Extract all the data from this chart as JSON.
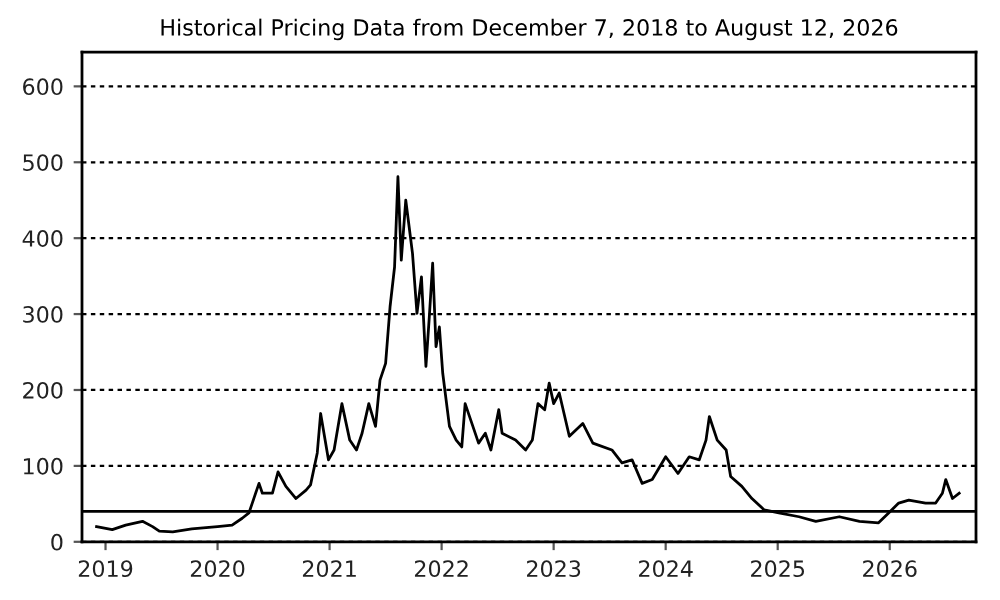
{
  "chart_data": {
    "type": "line",
    "title": "Historical Pricing Data from December 7, 2018 to August 12, 2026",
    "x": [
      2018.92,
      2019.06,
      2019.18,
      2019.33,
      2019.42,
      2019.48,
      2019.6,
      2019.77,
      2020.0,
      2020.13,
      2020.22,
      2020.28,
      2020.31,
      2020.37,
      2020.4,
      2020.49,
      2020.54,
      2020.61,
      2020.7,
      2020.79,
      2020.83,
      2020.89,
      2020.92,
      2020.99,
      2021.04,
      2021.11,
      2021.18,
      2021.24,
      2021.29,
      2021.35,
      2021.41,
      2021.45,
      2021.5,
      2021.54,
      2021.58,
      2021.61,
      2021.64,
      2021.68,
      2021.71,
      2021.74,
      2021.78,
      2021.82,
      2021.86,
      2021.89,
      2021.92,
      2021.95,
      2021.98,
      2022.01,
      2022.07,
      2022.13,
      2022.18,
      2022.21,
      2022.27,
      2022.33,
      2022.39,
      2022.44,
      2022.51,
      2022.54,
      2022.66,
      2022.75,
      2022.81,
      2022.86,
      2022.92,
      2022.96,
      2023.0,
      2023.05,
      2023.14,
      2023.26,
      2023.35,
      2023.52,
      2023.61,
      2023.7,
      2023.79,
      2023.88,
      2024.0,
      2024.11,
      2024.21,
      2024.3,
      2024.36,
      2024.39,
      2024.46,
      2024.54,
      2024.58,
      2024.68,
      2024.77,
      2024.88,
      2025.01,
      2025.19,
      2025.34,
      2025.55,
      2025.73,
      2025.9,
      2025.99,
      2026.08,
      2026.17,
      2026.32,
      2026.41,
      2026.47,
      2026.5,
      2026.56,
      2026.62
    ],
    "series": [
      {
        "color": "#000000",
        "values": [
          20,
          16,
          22,
          27,
          20,
          14,
          13,
          17,
          20,
          22,
          31,
          38,
          51,
          77,
          64,
          64,
          92,
          73,
          57,
          68,
          75,
          117,
          169,
          108,
          121,
          182,
          134,
          121,
          143,
          182,
          152,
          213,
          235,
          310,
          362,
          481,
          371,
          450,
          415,
          380,
          301,
          349,
          231,
          296,
          367,
          257,
          283,
          222,
          152,
          134,
          125,
          182,
          156,
          130,
          143,
          121,
          174,
          143,
          134,
          121,
          134,
          182,
          174,
          209,
          182,
          196,
          139,
          156,
          130,
          121,
          104,
          108,
          77,
          82,
          112,
          90,
          112,
          108,
          134,
          165,
          134,
          121,
          86,
          73,
          57,
          42,
          38,
          33,
          27,
          33,
          27,
          25,
          38,
          51,
          55,
          51,
          51,
          64,
          82,
          57,
          64
        ]
      }
    ],
    "xlim": [
      2018.79,
      2026.77
    ],
    "xticks": [
      2019,
      2020,
      2021,
      2022,
      2023,
      2024,
      2025,
      2026
    ],
    "ylim": [
      0,
      645
    ],
    "yticks": [
      0,
      100,
      200,
      300,
      400,
      500,
      600
    ],
    "grid": "y",
    "marker": "none",
    "line_style": "solid",
    "ref_lines": [
      {
        "axis": "y",
        "value": 40,
        "color": "#000000",
        "line_style": "solid"
      }
    ]
  }
}
